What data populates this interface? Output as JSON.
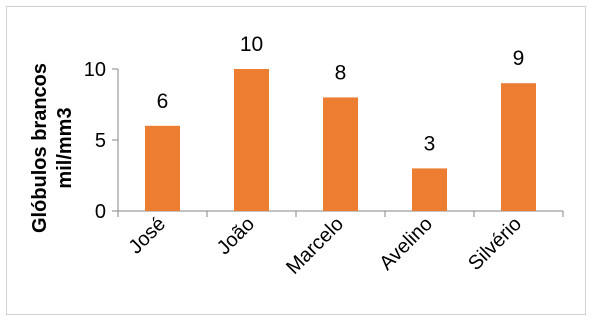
{
  "chart_data": {
    "type": "bar",
    "title": "",
    "xlabel": "",
    "ylabel": [
      "Glóbulos brancos",
      "mil/mm3"
    ],
    "categories": [
      "José",
      "João",
      "Marcelo",
      "Avelino",
      "Silvério"
    ],
    "values": [
      6,
      10,
      8,
      3,
      9
    ],
    "ylim": [
      0,
      10
    ],
    "yticks": [
      0,
      5,
      10
    ],
    "grid": false,
    "legend": "none",
    "bar_color": "#ED7D31",
    "data_labels": true
  }
}
